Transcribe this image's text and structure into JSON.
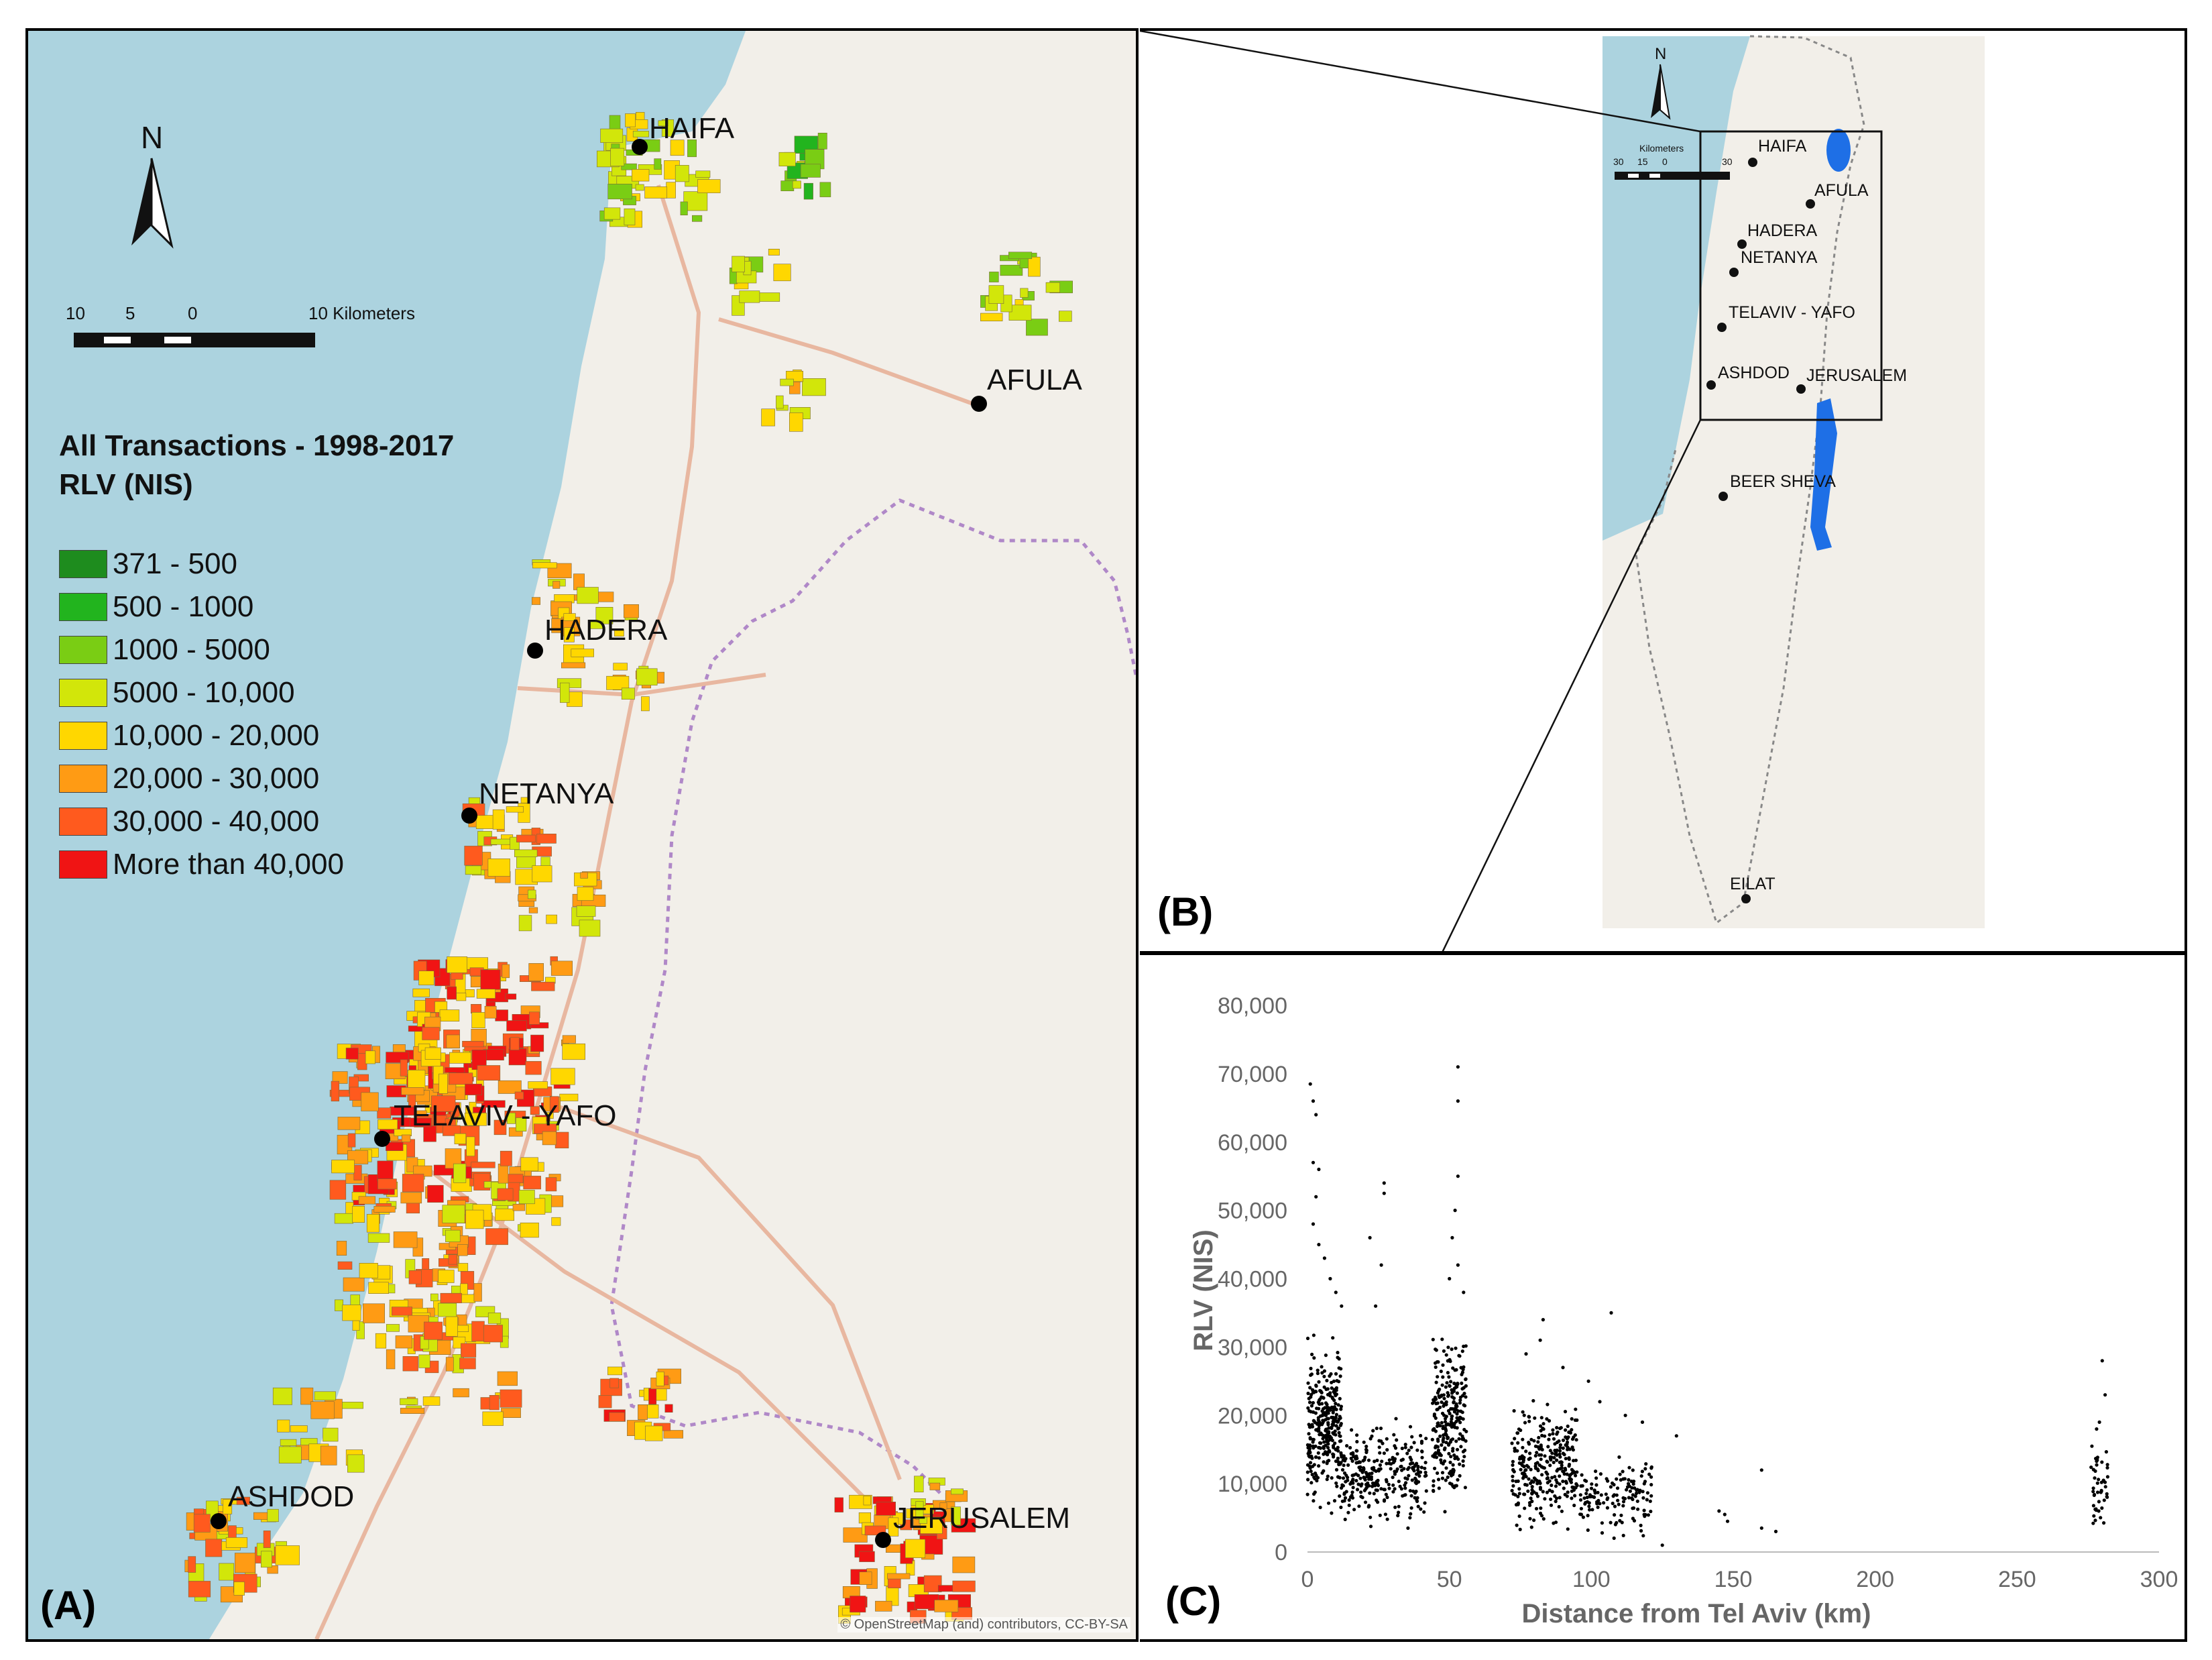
{
  "panel_a": {
    "label": "(A)",
    "north": "N",
    "scale": {
      "labels": [
        "10",
        "5",
        "0",
        "10 Kilometers"
      ]
    },
    "legend": {
      "title_line1": "All Transactions - 1998-2017",
      "title_line2": "RLV (NIS)",
      "items": [
        {
          "label": "371 - 500",
          "color": "#1e8c1e"
        },
        {
          "label": "500 - 1000",
          "color": "#22b41e"
        },
        {
          "label": "1000 - 5000",
          "color": "#7acd14"
        },
        {
          "label": "5000 - 10,000",
          "color": "#d2e60a"
        },
        {
          "label": "10,000 - 20,000",
          "color": "#ffd700"
        },
        {
          "label": "20,000 - 30,000",
          "color": "#ff9b14"
        },
        {
          "label": "30,000 - 40,000",
          "color": "#ff5a1e"
        },
        {
          "label": "More than 40,000",
          "color": "#f01414"
        }
      ]
    },
    "cities": {
      "haifa": "HAIFA",
      "afula": "AFULA",
      "hadera": "HADERA",
      "netanya": "NETANYA",
      "telaviv": "TELAVIV - YAFO",
      "ashdod": "ASHDOD",
      "jerusalem": "JERUSALEM"
    },
    "attribution": "© OpenStreetMap (and) contributors, CC-BY-SA"
  },
  "panel_b": {
    "label": "(B)",
    "north": "N",
    "scale_labels": [
      "Kilometers",
      "30",
      "15",
      "0",
      "30"
    ],
    "cities": {
      "haifa": "HAIFA",
      "afula": "AFULA",
      "hadera": "HADERA",
      "netanya": "NETANYA",
      "telaviv": "TELAVIV - YAFO",
      "ashdod": "ASHDOD",
      "jerusalem": "JERUSALEM",
      "beersheva": "BEER SHEVA",
      "eilat": "EILAT"
    }
  },
  "panel_c": {
    "label": "(C)"
  },
  "colors": {
    "sea": "#acd3df",
    "land": "#f2efe9",
    "dead_sea": "#1e6fe6"
  },
  "chart_data": {
    "type": "scatter",
    "xlabel": "Distance from Tel Aviv (km)",
    "ylabel": "RLV (NIS)",
    "xlim": [
      0,
      300
    ],
    "ylim": [
      0,
      80000
    ],
    "xticks": [
      0,
      50,
      100,
      150,
      200,
      250,
      300
    ],
    "yticks": [
      0,
      10000,
      20000,
      30000,
      40000,
      50000,
      60000,
      70000,
      80000
    ],
    "xtick_labels": [
      "0",
      "50",
      "100",
      "150",
      "200",
      "250",
      "300"
    ],
    "ytick_labels": [
      "0",
      "10,000",
      "20,000",
      "30,000",
      "40,000",
      "50,000",
      "60,000",
      "70,000",
      "80,000"
    ],
    "grid": false,
    "clusters": [
      {
        "x_range": [
          0,
          12
        ],
        "y_range": [
          3000,
          33000
        ],
        "count": 320
      },
      {
        "x_range": [
          12,
          42
        ],
        "y_range": [
          2000,
          20000
        ],
        "count": 280
      },
      {
        "x_range": [
          44,
          56
        ],
        "y_range": [
          3000,
          35000
        ],
        "count": 260
      },
      {
        "x_range": [
          72,
          95
        ],
        "y_range": [
          2000,
          24000
        ],
        "count": 300
      },
      {
        "x_range": [
          96,
          122
        ],
        "y_range": [
          1000,
          15000
        ],
        "count": 140
      },
      {
        "x_range": [
          276,
          282
        ],
        "y_range": [
          3000,
          17000
        ],
        "count": 45
      }
    ],
    "points": [
      [
        1,
        68500
      ],
      [
        2,
        66000
      ],
      [
        3,
        64000
      ],
      [
        2,
        57000
      ],
      [
        4,
        56000
      ],
      [
        3,
        52000
      ],
      [
        2,
        48000
      ],
      [
        4,
        45000
      ],
      [
        6,
        43000
      ],
      [
        8,
        40000
      ],
      [
        10,
        38000
      ],
      [
        12,
        36000
      ],
      [
        27,
        54000
      ],
      [
        27,
        52500
      ],
      [
        22,
        46000
      ],
      [
        26,
        42000
      ],
      [
        24,
        36000
      ],
      [
        53,
        71000
      ],
      [
        53,
        66000
      ],
      [
        53,
        55000
      ],
      [
        52,
        50000
      ],
      [
        51,
        46000
      ],
      [
        53,
        42000
      ],
      [
        50,
        40000
      ],
      [
        55,
        38000
      ],
      [
        77,
        29000
      ],
      [
        83,
        34000
      ],
      [
        82,
        31000
      ],
      [
        90,
        27000
      ],
      [
        99,
        25000
      ],
      [
        107,
        35000
      ],
      [
        103,
        22000
      ],
      [
        112,
        20000
      ],
      [
        118,
        19000
      ],
      [
        125,
        1000
      ],
      [
        130,
        17000
      ],
      [
        145,
        6000
      ],
      [
        147,
        5500
      ],
      [
        148,
        4500
      ],
      [
        160,
        3500
      ],
      [
        165,
        3000
      ],
      [
        160,
        12000
      ],
      [
        280,
        28000
      ],
      [
        281,
        23000
      ],
      [
        279,
        19000
      ],
      [
        278,
        18000
      ]
    ]
  }
}
